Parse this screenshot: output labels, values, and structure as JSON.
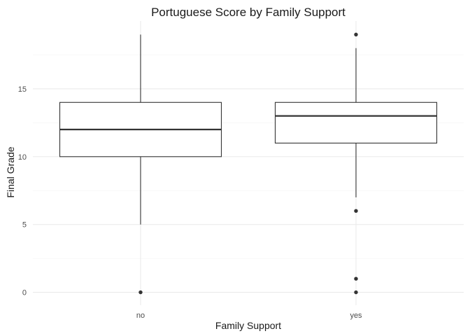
{
  "chart_data": {
    "type": "box",
    "title": "Portuguese Score by Family Support",
    "xlabel": "Family Support",
    "ylabel": "Final Grade",
    "categories": [
      "no",
      "yes"
    ],
    "ylim": [
      -0.95,
      20.0
    ],
    "yticks": [
      0,
      5,
      10,
      15
    ],
    "yticks_labels": [
      "0",
      "5",
      "10",
      "15"
    ],
    "boxes": [
      {
        "category": "no",
        "whisker_low": 5,
        "q1": 10,
        "median": 12,
        "q3": 14,
        "whisker_high": 19,
        "outliers": [
          0
        ]
      },
      {
        "category": "yes",
        "whisker_low": 7,
        "q1": 11,
        "median": 13,
        "q3": 14,
        "whisker_high": 18,
        "outliers": [
          19,
          6,
          1,
          0
        ]
      }
    ],
    "grid": true,
    "colors": {
      "box_fill": "#ffffff",
      "box_line": "#333333",
      "outlier": "#333333",
      "grid": "#ebebeb"
    }
  }
}
